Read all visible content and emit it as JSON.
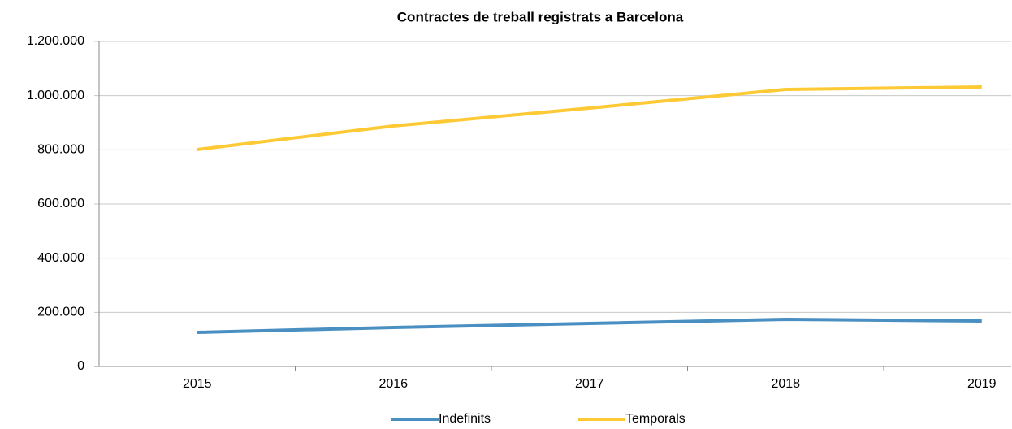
{
  "chart_data": {
    "type": "line",
    "title": "Contractes de treball registrats a Barcelona",
    "categories": [
      "2015",
      "2016",
      "2017",
      "2018",
      "2019"
    ],
    "series": [
      {
        "name": "Indefinits",
        "color": "#4a8fc1",
        "values": [
          126000,
          144000,
          159000,
          174000,
          168000
        ]
      },
      {
        "name": "Temporals",
        "color": "#fdc935",
        "values": [
          801000,
          888000,
          954000,
          1023000,
          1032000
        ]
      }
    ],
    "ylim": [
      0,
      1200000
    ],
    "yticks": [
      0,
      {
        "value": 200000,
        "label": "200.000"
      },
      {
        "value": 400000,
        "label": "400.000"
      },
      {
        "value": 600000,
        "label": "600.000"
      },
      {
        "value": 800000,
        "label": "800.000"
      },
      {
        "value": 1000000,
        "label": "1.000.000"
      },
      {
        "value": 1200000,
        "label": "1.200.000"
      }
    ],
    "grid": true,
    "legend": "bottom"
  }
}
